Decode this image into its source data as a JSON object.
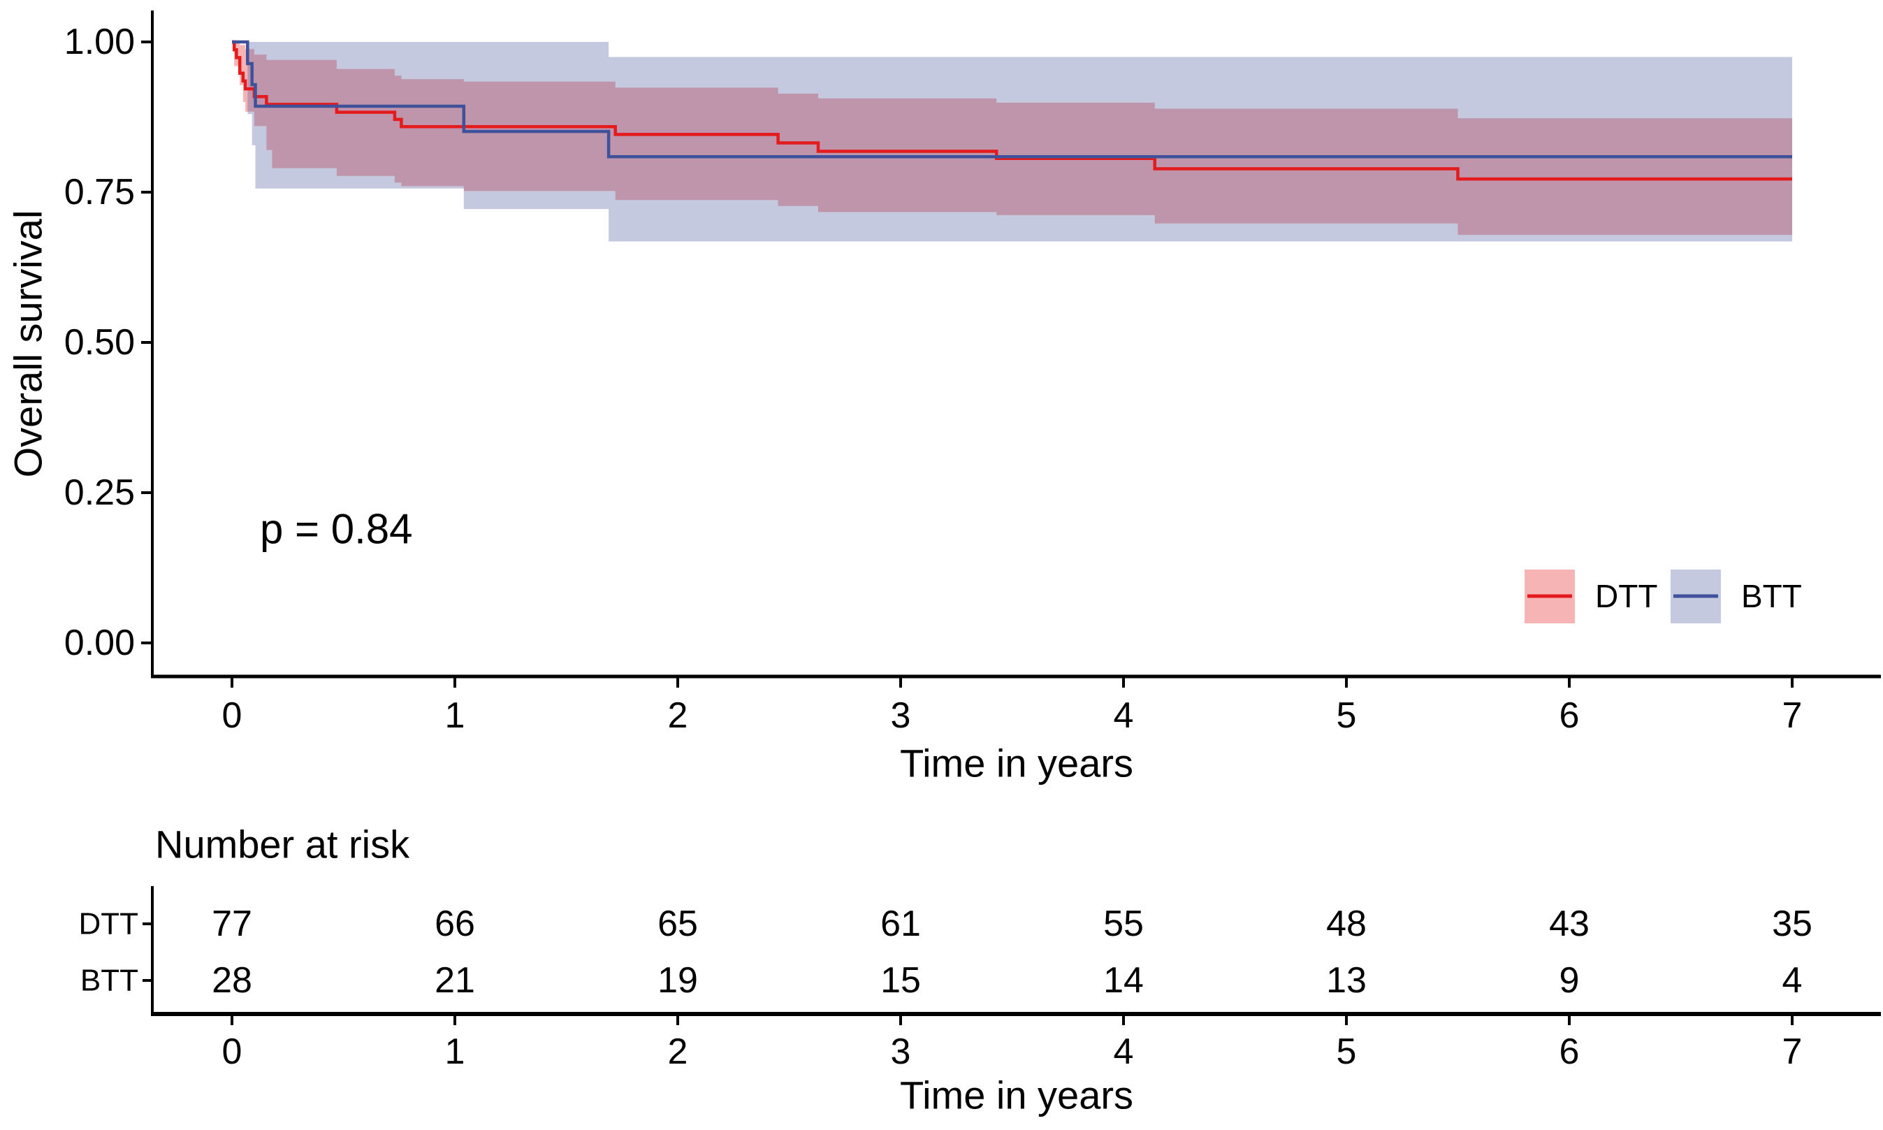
{
  "chart_data": {
    "type": "line",
    "subtype": "kaplan-meier-step-curves-with-ci-bands",
    "title": "",
    "xlabel": "Time in years",
    "ylabel": "Overall survival",
    "xlim": [
      -0.36,
      7.4
    ],
    "ylim": [
      -0.06,
      1.05
    ],
    "x_ticks": [
      0,
      1,
      2,
      3,
      4,
      5,
      6,
      7
    ],
    "x_tick_labels": [
      "0",
      "1",
      "2",
      "3",
      "4",
      "5",
      "6",
      "7"
    ],
    "y_ticks": [
      1.0,
      0.75,
      0.5,
      0.25,
      0.0
    ],
    "y_tick_labels": [
      "1.00",
      "0.75",
      "0.50",
      "0.25",
      "0.00"
    ],
    "grid": false,
    "legend_position": "bottom-right",
    "p_value": "p = 0.84",
    "series": [
      {
        "name": "DTT",
        "line_color": "#E41A1C",
        "band_color": "rgba(228,26,28,0.33)",
        "steps": [
          [
            0,
            1.0
          ],
          [
            0.01,
            0.987
          ],
          [
            0.02,
            0.974
          ],
          [
            0.035,
            0.948
          ],
          [
            0.05,
            0.935
          ],
          [
            0.06,
            0.922
          ],
          [
            0.1,
            0.909
          ],
          [
            0.155,
            0.896
          ],
          [
            0.47,
            0.883
          ],
          [
            0.73,
            0.871
          ],
          [
            0.76,
            0.859
          ],
          [
            1.72,
            0.846
          ],
          [
            2.45,
            0.832
          ],
          [
            2.63,
            0.818
          ],
          [
            3.43,
            0.806
          ],
          [
            4.14,
            0.789
          ],
          [
            5.5,
            0.772
          ],
          [
            7.0,
            0.772
          ]
        ],
        "ci_upper": [
          [
            0.01,
            1.0
          ],
          [
            0.035,
            0.995
          ],
          [
            0.06,
            0.988
          ],
          [
            0.1,
            0.979
          ],
          [
            0.155,
            0.97
          ],
          [
            0.47,
            0.955
          ],
          [
            0.73,
            0.944
          ],
          [
            0.76,
            0.938
          ],
          [
            1.04,
            0.934
          ],
          [
            1.72,
            0.924
          ],
          [
            2.45,
            0.914
          ],
          [
            2.63,
            0.906
          ],
          [
            3.43,
            0.899
          ],
          [
            4.14,
            0.889
          ],
          [
            5.5,
            0.873
          ],
          [
            7.0,
            0.873
          ]
        ],
        "ci_lower": [
          [
            0.01,
            0.96
          ],
          [
            0.035,
            0.928
          ],
          [
            0.05,
            0.9
          ],
          [
            0.06,
            0.884
          ],
          [
            0.1,
            0.86
          ],
          [
            0.155,
            0.82
          ],
          [
            0.18,
            0.79
          ],
          [
            0.47,
            0.777
          ],
          [
            0.73,
            0.766
          ],
          [
            0.76,
            0.76
          ],
          [
            1.04,
            0.752
          ],
          [
            1.72,
            0.737
          ],
          [
            2.45,
            0.727
          ],
          [
            2.63,
            0.717
          ],
          [
            3.43,
            0.712
          ],
          [
            4.14,
            0.698
          ],
          [
            5.5,
            0.679
          ],
          [
            7.0,
            0.679
          ]
        ]
      },
      {
        "name": "BTT",
        "line_color": "#40519B",
        "band_color": "rgba(63,82,153,0.31)",
        "steps": [
          [
            0,
            1.0
          ],
          [
            0.07,
            0.964
          ],
          [
            0.09,
            0.929
          ],
          [
            0.105,
            0.893
          ],
          [
            1.04,
            0.851
          ],
          [
            1.69,
            0.809
          ],
          [
            7.0,
            0.809
          ]
        ],
        "ci_upper": [
          [
            0.07,
            1.0
          ],
          [
            1.69,
            0.975
          ],
          [
            7.0,
            0.975
          ]
        ],
        "ci_lower": [
          [
            0.07,
            0.88
          ],
          [
            0.09,
            0.828
          ],
          [
            0.105,
            0.756
          ],
          [
            1.04,
            0.722
          ],
          [
            1.69,
            0.668
          ],
          [
            7.0,
            0.668
          ]
        ]
      }
    ]
  },
  "risk_table": {
    "title": "Number at risk",
    "xlabel": "Time in years",
    "time_points": [
      0,
      1,
      2,
      3,
      4,
      5,
      6,
      7
    ],
    "time_labels": [
      "0",
      "1",
      "2",
      "3",
      "4",
      "5",
      "6",
      "7"
    ],
    "rows": [
      {
        "label": "DTT",
        "color": "#E41A1C",
        "values": [
          "77",
          "66",
          "65",
          "61",
          "55",
          "48",
          "43",
          "35"
        ]
      },
      {
        "label": "BTT",
        "color": "#40519B",
        "values": [
          "28",
          "21",
          "19",
          "15",
          "14",
          "13",
          "9",
          "4"
        ]
      }
    ]
  }
}
